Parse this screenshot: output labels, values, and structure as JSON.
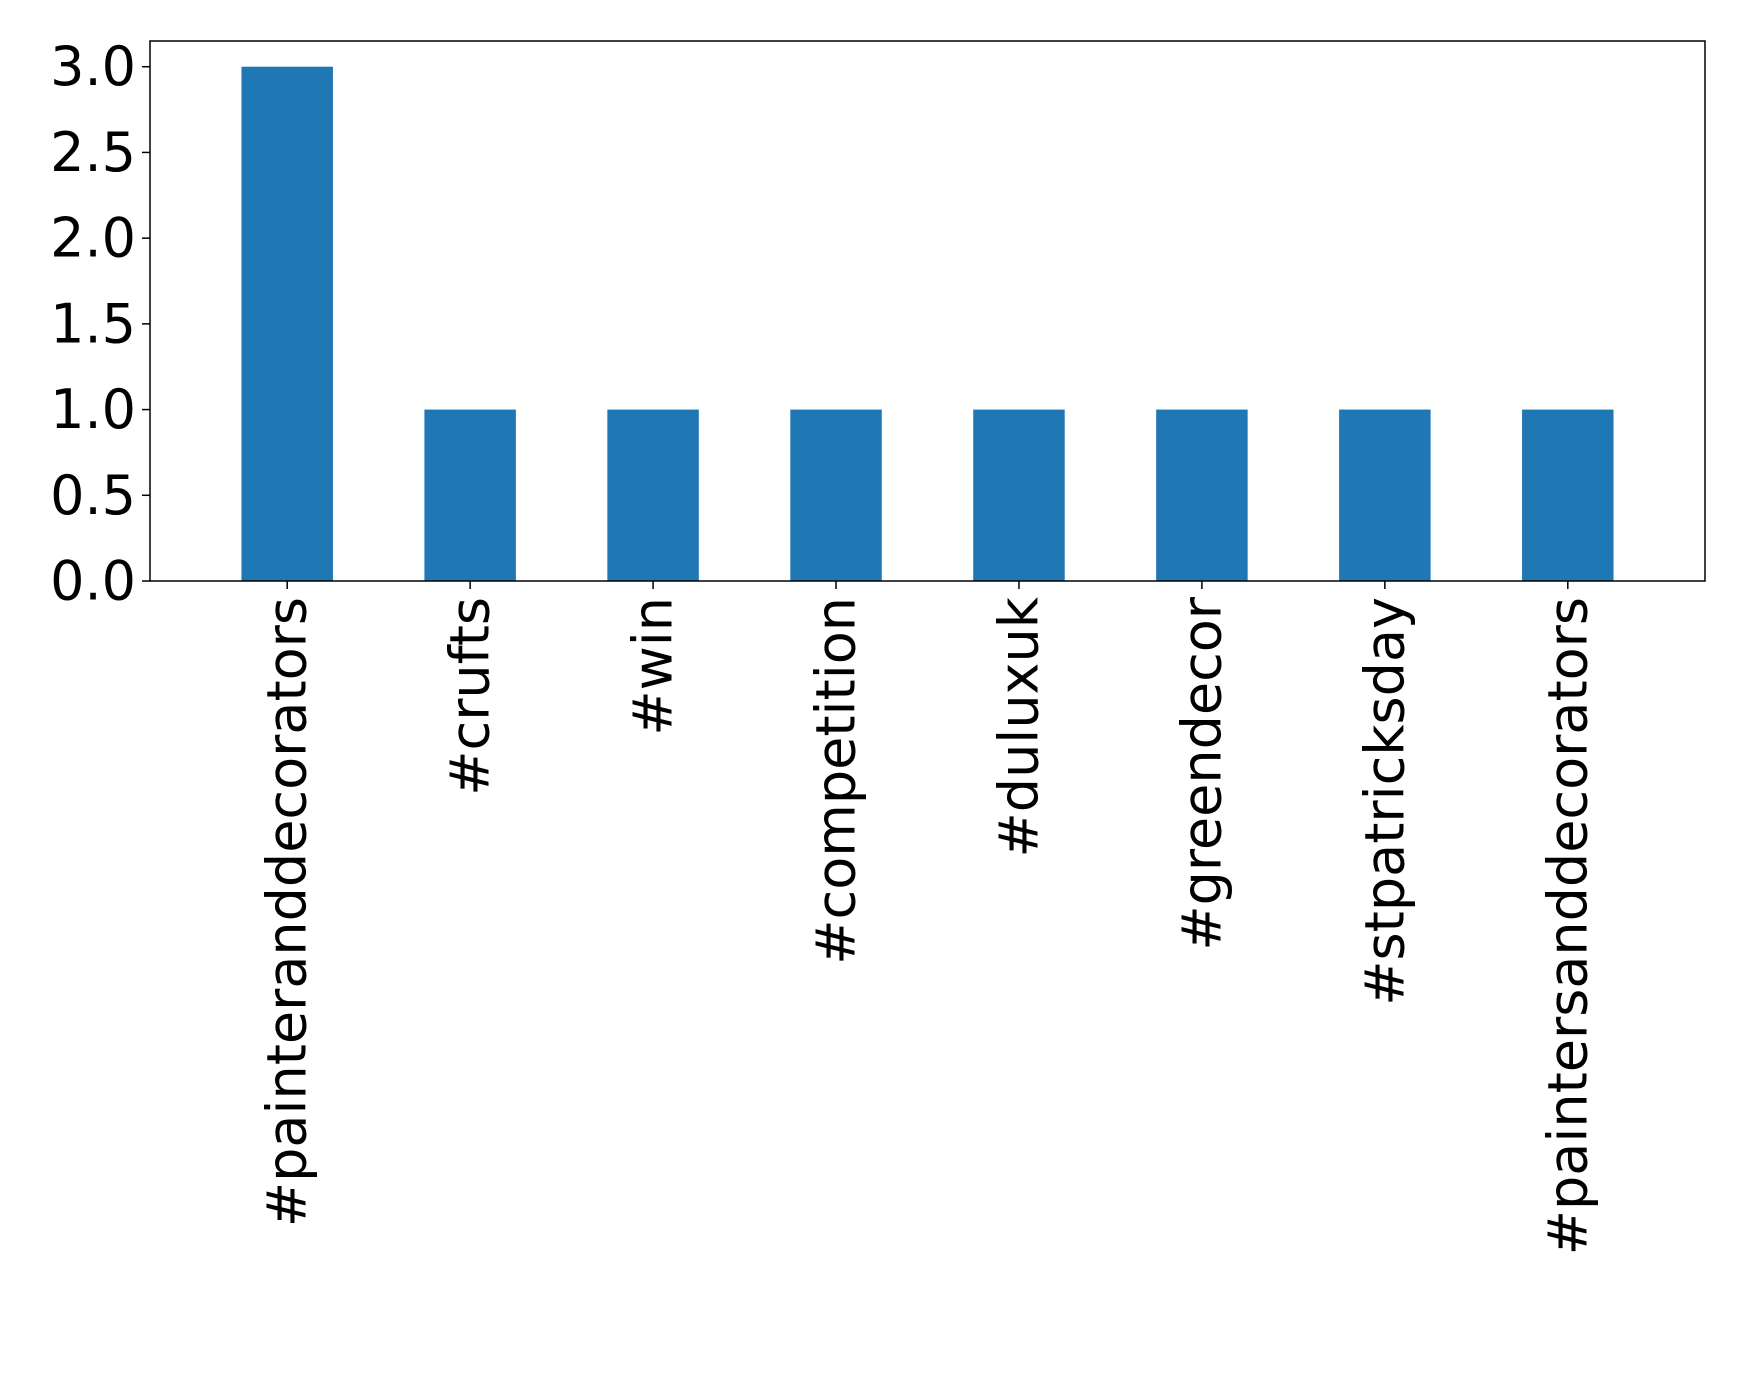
{
  "chart_data": {
    "type": "bar",
    "categories": [
      "#painteranddecorators",
      "#crufts",
      "#win",
      "#competition",
      "#duluxuk",
      "#greendecor",
      "#stpatricksday",
      "#paintersanddecorators"
    ],
    "values": [
      3,
      1,
      1,
      1,
      1,
      1,
      1,
      1
    ],
    "ylim": [
      0,
      3.15
    ],
    "yticks": [
      "0.0",
      "0.5",
      "1.0",
      "1.5",
      "2.0",
      "2.5",
      "3.0"
    ],
    "title": "",
    "xlabel": "",
    "ylabel": "",
    "grid": false,
    "bar_color": "#1f77b4"
  }
}
